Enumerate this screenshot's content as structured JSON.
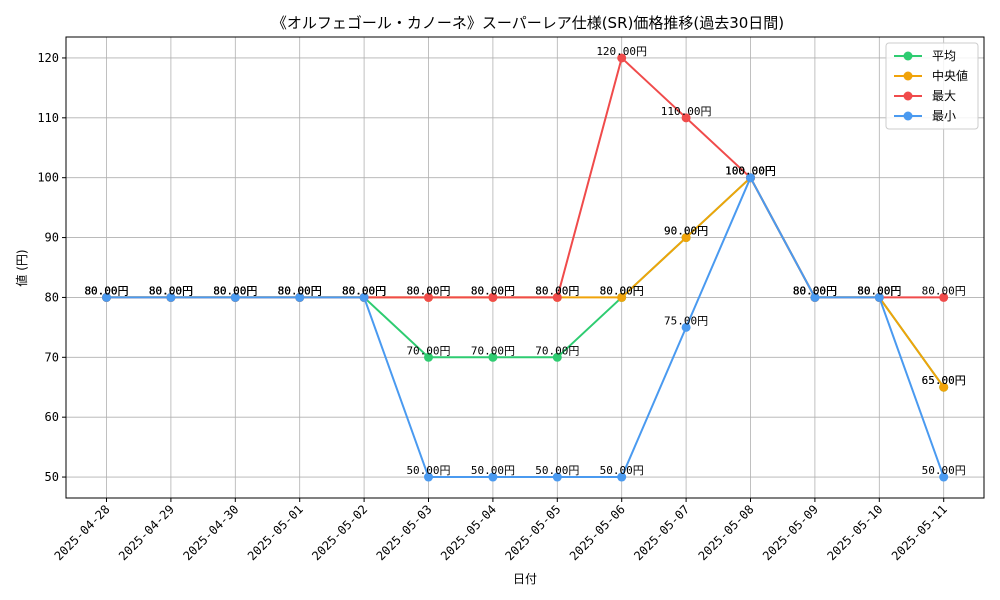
{
  "chart_data": {
    "type": "line",
    "title": "《オルフェゴール・カノーネ》スーパーレア仕様(SR)価格推移(過去30日間)",
    "xlabel": "日付",
    "ylabel": "値 (円)",
    "ylim": [
      46.5,
      123.5
    ],
    "yticks": [
      50,
      60,
      70,
      80,
      90,
      100,
      110,
      120
    ],
    "grid": true,
    "legend_position": "top-right",
    "label_suffix": "円",
    "categories": [
      "2025-04-28",
      "2025-04-29",
      "2025-04-30",
      "2025-05-01",
      "2025-05-02",
      "2025-05-03",
      "2025-05-04",
      "2025-05-05",
      "2025-05-06",
      "2025-05-07",
      "2025-05-08",
      "2025-05-09",
      "2025-05-10",
      "2025-05-11"
    ],
    "series": [
      {
        "name": "平均",
        "color": "#2ecc71",
        "values": [
          80,
          80,
          80,
          80,
          80,
          70,
          70,
          70,
          80,
          90,
          100,
          80,
          80,
          65
        ]
      },
      {
        "name": "中央値",
        "color": "#f0a30a",
        "values": [
          80,
          80,
          80,
          80,
          80,
          80,
          80,
          80,
          80,
          90,
          100,
          80,
          80,
          65
        ]
      },
      {
        "name": "最大",
        "color": "#f04b4b",
        "values": [
          80,
          80,
          80,
          80,
          80,
          80,
          80,
          80,
          120,
          110,
          100,
          80,
          80,
          80
        ]
      },
      {
        "name": "最小",
        "color": "#4a9af0",
        "values": [
          80,
          80,
          80,
          80,
          80,
          50,
          50,
          50,
          50,
          75,
          100,
          80,
          80,
          50
        ]
      }
    ]
  }
}
